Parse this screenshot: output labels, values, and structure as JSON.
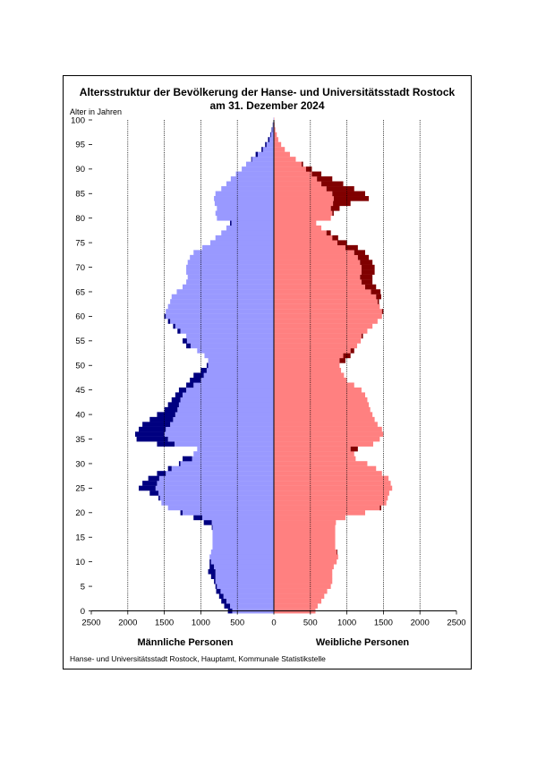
{
  "title_line1": "Altersstruktur der Bevölkerung der Hanse- und Universitätsstadt Rostock",
  "title_line2": "am 31. Dezember 2024",
  "y_axis_label": "Alter in Jahren",
  "male_label": "Männliche Personen",
  "female_label": "Weibliche Personen",
  "source": "Hanse- und Universitätsstadt Rostock, Hauptamt, Kommunale Statistikstelle",
  "colors": {
    "male_base": "#9999ff",
    "male_surplus": "#000080",
    "female_base": "#ff8080",
    "female_surplus": "#800000"
  },
  "chart_data": {
    "type": "bar",
    "orientation": "horizontal",
    "title": "Altersstruktur der Bevölkerung der Hanse- und Universitätsstadt Rostock am 31. Dezember 2024",
    "ylabel": "Alter in Jahren",
    "xlim": [
      -2500,
      2500
    ],
    "ylim": [
      0,
      100
    ],
    "x_ticks": [
      2500,
      2000,
      1500,
      1000,
      500,
      0,
      500,
      1000,
      1500,
      2000,
      2500
    ],
    "y_ticks": [
      0,
      5,
      10,
      15,
      20,
      25,
      30,
      35,
      40,
      45,
      50,
      55,
      60,
      65,
      70,
      75,
      80,
      85,
      90,
      95,
      100
    ],
    "grid": "vertical dotted lines",
    "categories_age": [
      0,
      1,
      2,
      3,
      4,
      5,
      6,
      7,
      8,
      9,
      10,
      11,
      12,
      13,
      14,
      15,
      16,
      17,
      18,
      19,
      20,
      21,
      22,
      23,
      24,
      25,
      26,
      27,
      28,
      29,
      30,
      31,
      32,
      33,
      34,
      35,
      36,
      37,
      38,
      39,
      40,
      41,
      42,
      43,
      44,
      45,
      46,
      47,
      48,
      49,
      50,
      51,
      52,
      53,
      54,
      55,
      56,
      57,
      58,
      59,
      60,
      61,
      62,
      63,
      64,
      65,
      66,
      67,
      68,
      69,
      70,
      71,
      72,
      73,
      74,
      75,
      76,
      77,
      78,
      79,
      80,
      81,
      82,
      83,
      84,
      85,
      86,
      87,
      88,
      89,
      90,
      91,
      92,
      93,
      94,
      95,
      96,
      97,
      98,
      99,
      100
    ],
    "series": [
      {
        "name": "Männliche Personen",
        "values": [
          630,
          680,
          720,
          750,
          790,
          800,
          820,
          860,
          900,
          880,
          880,
          880,
          860,
          840,
          840,
          840,
          840,
          850,
          960,
          1100,
          1280,
          1450,
          1540,
          1580,
          1700,
          1850,
          1800,
          1720,
          1600,
          1450,
          1300,
          1250,
          1100,
          1050,
          1600,
          1880,
          1900,
          1850,
          1800,
          1700,
          1600,
          1500,
          1450,
          1400,
          1350,
          1300,
          1200,
          1150,
          1100,
          1000,
          920,
          900,
          950,
          1050,
          1200,
          1250,
          1200,
          1320,
          1380,
          1450,
          1500,
          1480,
          1450,
          1420,
          1400,
          1330,
          1250,
          1200,
          1180,
          1200,
          1200,
          1180,
          1150,
          1100,
          980,
          870,
          800,
          720,
          650,
          600,
          780,
          800,
          780,
          810,
          820,
          800,
          720,
          650,
          590,
          520,
          440,
          380,
          310,
          250,
          170,
          120,
          80,
          50,
          30,
          15,
          5
        ]
      },
      {
        "name": "Weibliche Personen",
        "values": [
          570,
          600,
          650,
          690,
          730,
          780,
          800,
          800,
          800,
          820,
          860,
          880,
          870,
          840,
          840,
          840,
          840,
          840,
          850,
          980,
          1250,
          1470,
          1540,
          1560,
          1580,
          1620,
          1600,
          1570,
          1480,
          1400,
          1280,
          1120,
          1100,
          1150,
          1360,
          1450,
          1500,
          1480,
          1420,
          1380,
          1350,
          1320,
          1300,
          1280,
          1250,
          1200,
          1100,
          1000,
          960,
          920,
          900,
          980,
          1050,
          1100,
          1140,
          1190,
          1220,
          1280,
          1350,
          1420,
          1480,
          1500,
          1450,
          1440,
          1470,
          1460,
          1400,
          1350,
          1350,
          1380,
          1380,
          1350,
          1300,
          1250,
          1150,
          1000,
          880,
          780,
          650,
          580,
          780,
          820,
          900,
          1050,
          1300,
          1250,
          1100,
          950,
          800,
          650,
          520,
          400,
          300,
          220,
          150,
          100,
          60,
          40,
          20,
          10,
          5
        ]
      }
    ],
    "surplus_note": "dark segments show the surplus of one sex over the other at each age"
  }
}
